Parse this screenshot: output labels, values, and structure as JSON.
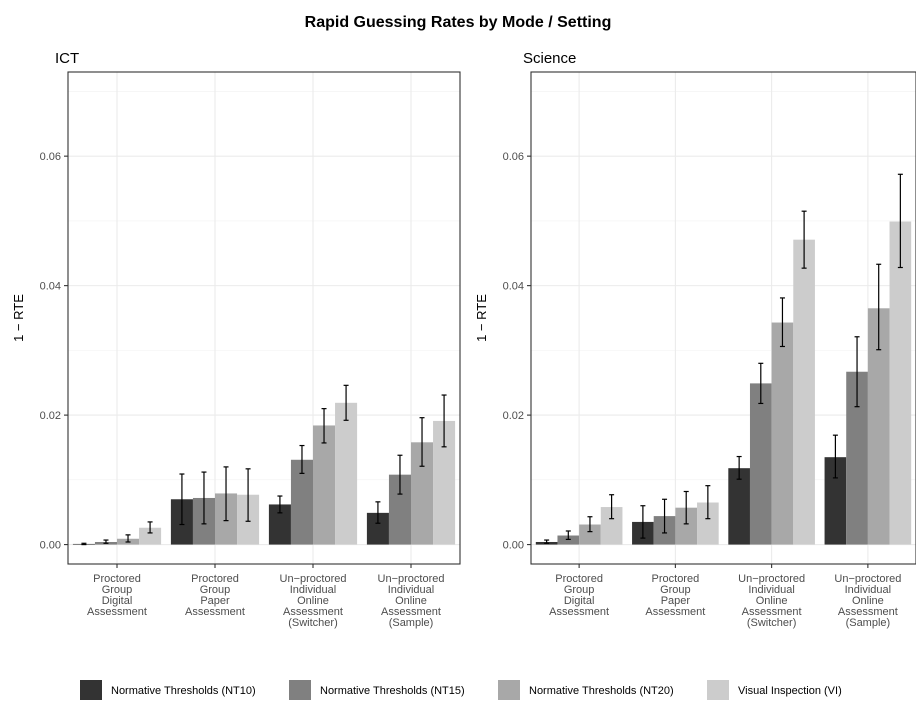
{
  "title": "Rapid Guessing Rates by Mode / Setting",
  "chart_data": {
    "type": "bar",
    "title": "Rapid Guessing Rates by Mode / Setting",
    "ylabel": "1 − RTE",
    "ylim": [
      -0.003,
      0.073
    ],
    "yticks": [
      0.0,
      0.02,
      0.04,
      0.06
    ],
    "ytick_labels": [
      "0.00",
      "0.02",
      "0.04",
      "0.06"
    ],
    "grid": true,
    "legend_position": "bottom",
    "categories": [
      [
        "Proctored",
        "Group",
        "Digital",
        "Assessment"
      ],
      [
        "Proctored",
        "Group",
        "Paper",
        "Assessment"
      ],
      [
        "Un−proctored",
        "Individual",
        "Online",
        "Assessment",
        "(Switcher)"
      ],
      [
        "Un−proctored",
        "Individual",
        "Online",
        "Assessment",
        "(Sample)"
      ]
    ],
    "series": [
      {
        "name": "Normative Thresholds (NT10)",
        "color": "#333333"
      },
      {
        "name": "Normative Thresholds (NT15)",
        "color": "#808080"
      },
      {
        "name": "Normative Thresholds (NT20)",
        "color": "#a8a8a8"
      },
      {
        "name": "Visual Inspection (VI)",
        "color": "#cccccc"
      }
    ],
    "panels": [
      {
        "title": "ICT",
        "values": [
          [
            0.0001,
            0.007,
            0.0062,
            0.0049
          ],
          [
            0.0004,
            0.0072,
            0.0131,
            0.0108
          ],
          [
            0.0009,
            0.0079,
            0.0184,
            0.0158
          ],
          [
            0.0026,
            0.0077,
            0.0219,
            0.0191
          ]
        ],
        "errors": [
          [
            [
              0.0,
              0.0002
            ],
            [
              0.0031,
              0.0109
            ],
            [
              0.0049,
              0.0075
            ],
            [
              0.0033,
              0.0066
            ]
          ],
          [
            [
              0.0002,
              0.0007
            ],
            [
              0.0032,
              0.0112
            ],
            [
              0.011,
              0.0153
            ],
            [
              0.0078,
              0.0138
            ]
          ],
          [
            [
              0.0004,
              0.0015
            ],
            [
              0.0037,
              0.012
            ],
            [
              0.0157,
              0.021
            ],
            [
              0.0121,
              0.0196
            ]
          ],
          [
            [
              0.0018,
              0.0035
            ],
            [
              0.0036,
              0.0117
            ],
            [
              0.0192,
              0.0246
            ],
            [
              0.0151,
              0.0231
            ]
          ]
        ]
      },
      {
        "title": "Science",
        "values": [
          [
            0.0004,
            0.0035,
            0.0118,
            0.0135
          ],
          [
            0.0014,
            0.0044,
            0.0249,
            0.0267
          ],
          [
            0.0031,
            0.0057,
            0.0343,
            0.0365
          ],
          [
            0.0058,
            0.0065,
            0.0471,
            0.0499
          ]
        ],
        "errors": [
          [
            [
              0.0002,
              0.0007
            ],
            [
              0.001,
              0.006
            ],
            [
              0.0101,
              0.0136
            ],
            [
              0.0103,
              0.0169
            ]
          ],
          [
            [
              0.0008,
              0.0021
            ],
            [
              0.0018,
              0.007
            ],
            [
              0.0218,
              0.028
            ],
            [
              0.0213,
              0.0321
            ]
          ],
          [
            [
              0.002,
              0.0043
            ],
            [
              0.0032,
              0.0082
            ],
            [
              0.0306,
              0.0381
            ],
            [
              0.0301,
              0.0433
            ]
          ],
          [
            [
              0.004,
              0.0077
            ],
            [
              0.004,
              0.0091
            ],
            [
              0.0427,
              0.0515
            ],
            [
              0.0428,
              0.0572
            ]
          ]
        ]
      }
    ]
  }
}
